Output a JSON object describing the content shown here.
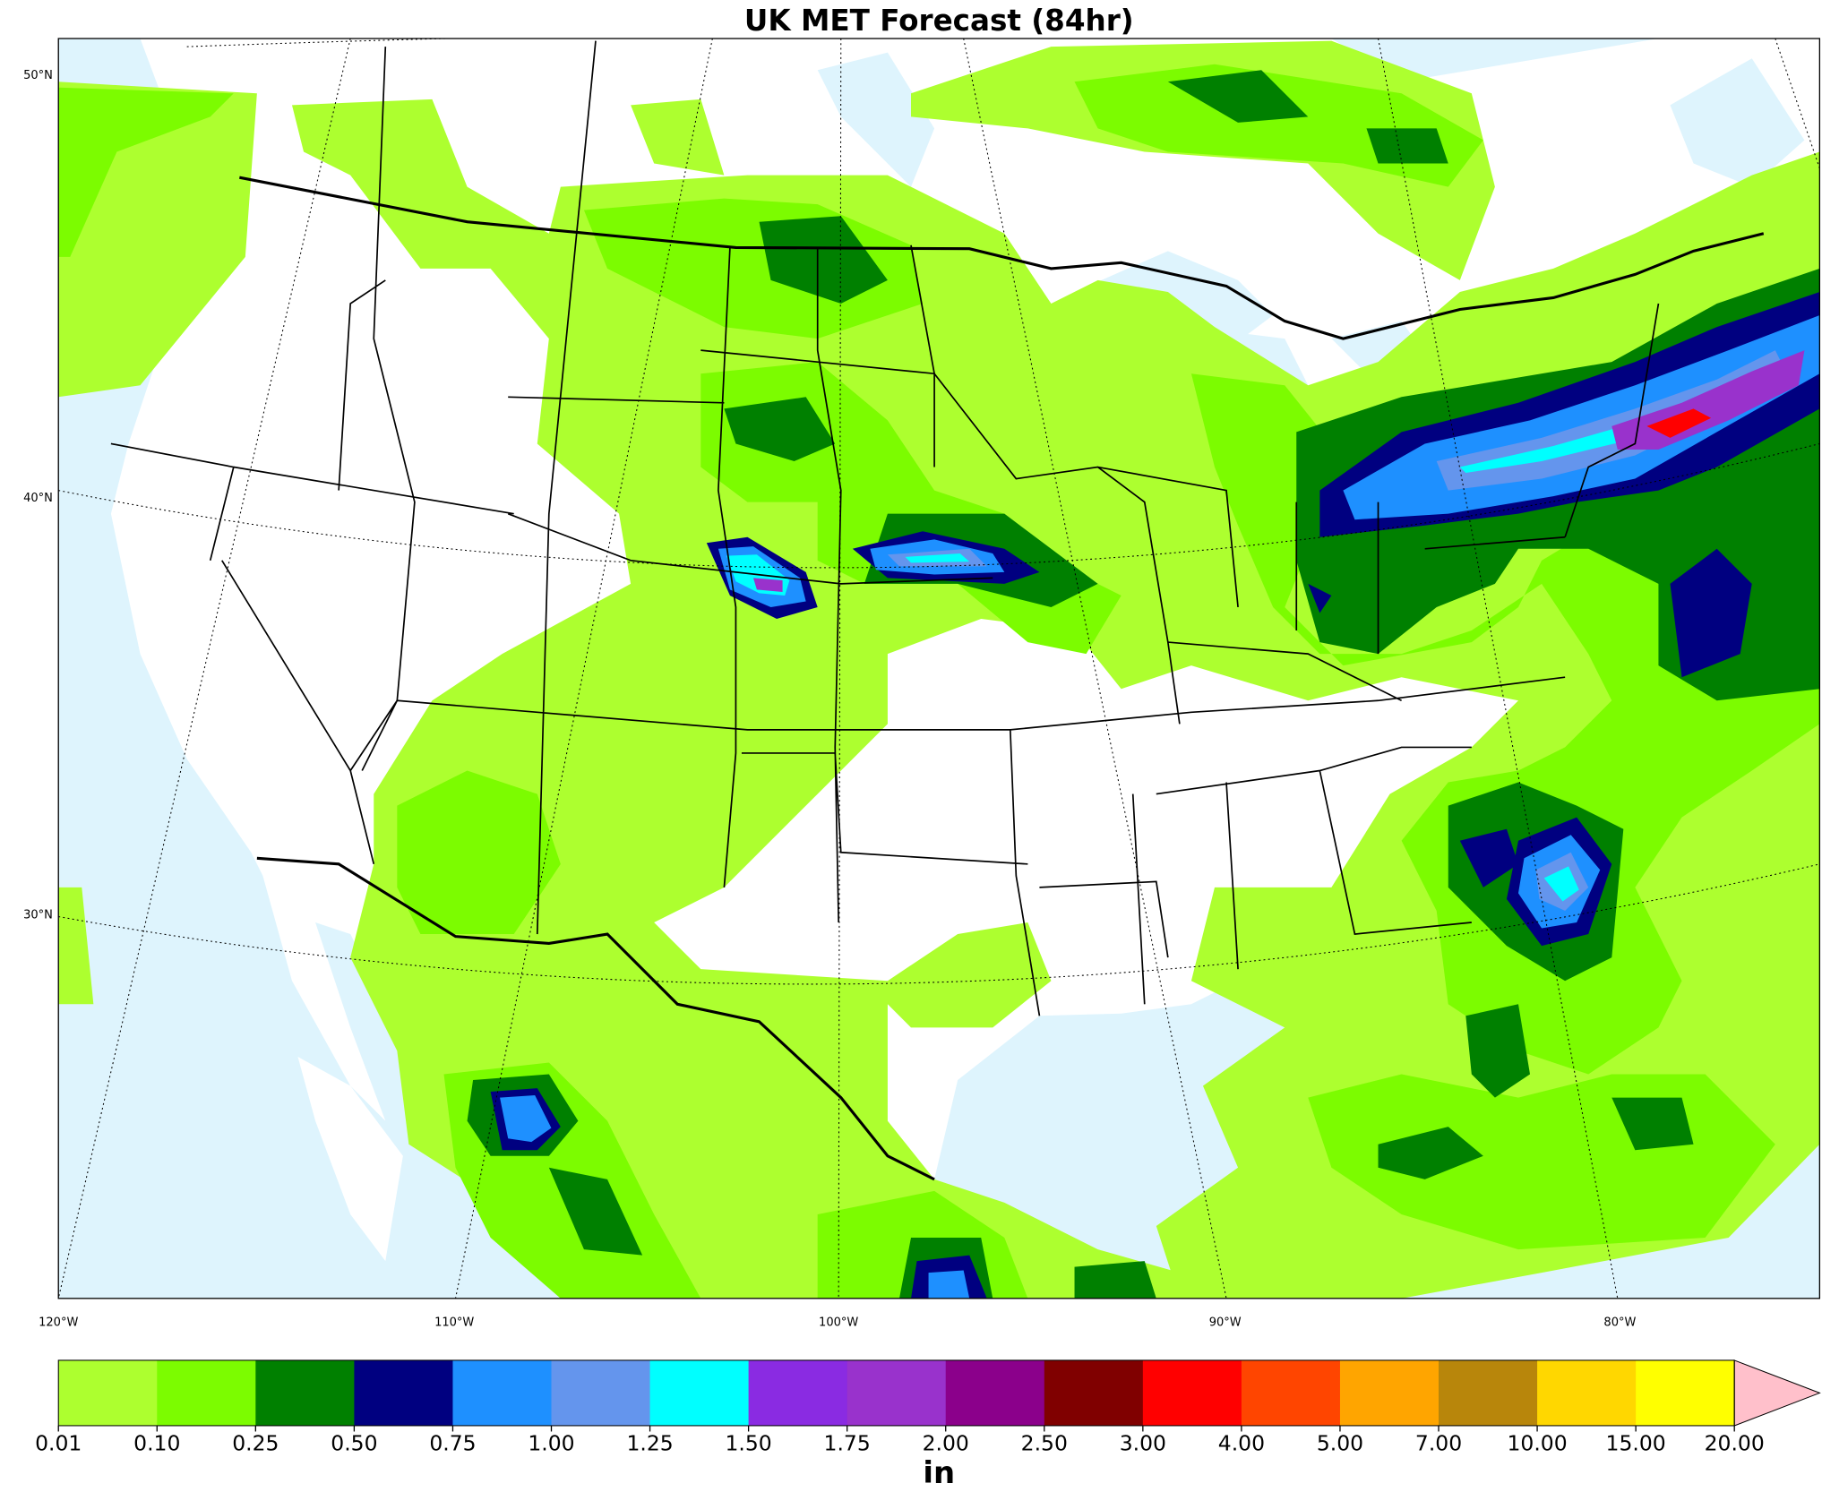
{
  "title": "UK MET Forecast (84hr)",
  "map": {
    "lat_labels": [
      "50°N",
      "40°N",
      "30°N"
    ],
    "lon_labels": [
      "120°W",
      "110°W",
      "100°W",
      "90°W",
      "80°W"
    ]
  },
  "colorbar": {
    "label": "in",
    "colors": [
      "#adff2f",
      "#7cfc00",
      "#008000",
      "#000080",
      "#1e90ff",
      "#6495ed",
      "#00ffff",
      "#8a2be2",
      "#9932cc",
      "#8b008b",
      "#800000",
      "#ff0000",
      "#ff4500",
      "#ffa500",
      "#b8860b",
      "#ffd700",
      "#ffff00"
    ],
    "over_color": "#ffc0cb",
    "ticks": [
      0.01,
      {
        "value": 0.1,
        "label": "0.10"
      },
      0.25,
      {
        "value": 0.5,
        "label": "0.50"
      },
      0.75,
      {
        "value": 1,
        "label": "1.00"
      },
      1.25,
      {
        "value": 1.5,
        "label": "1.50"
      },
      1.75,
      {
        "value": 2,
        "label": "2.00"
      },
      {
        "value": 2.5,
        "label": "2.50"
      },
      {
        "value": 3,
        "label": "3.00"
      },
      {
        "value": 4,
        "label": "4.00"
      },
      {
        "value": 5,
        "label": "5.00"
      },
      {
        "value": 7,
        "label": "7.00"
      },
      {
        "value": 10,
        "label": "10.00"
      },
      {
        "value": 15,
        "label": "15.00"
      },
      {
        "value": 20,
        "label": "20.00"
      }
    ]
  }
}
